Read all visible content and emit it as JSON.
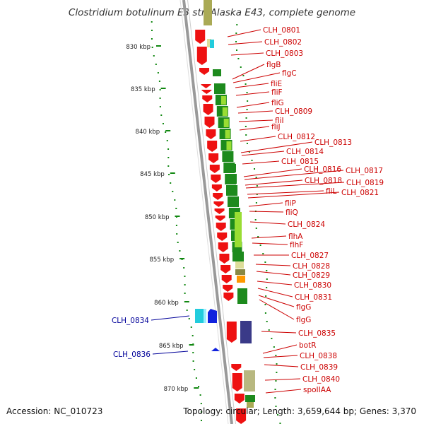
{
  "title": "Clostridium botulinum E3 str. Alaska E43, complete genome",
  "footer": {
    "accession": "Accession: NC_010723",
    "summary": "Topology: circular; Length: 3,659,644 bp; Genes: 3,370"
  },
  "colors": {
    "forward_gene": "#ee1111",
    "reverse_gene": "#1122dd",
    "forward_label": "#cc0000",
    "reverse_label": "#000099",
    "backbone": "#999999",
    "tick": "#118811",
    "cog_dark_green": "#1d8a1d",
    "cog_light_green": "#99dd33",
    "cog_cyan": "#22ccdd",
    "cog_navy": "#3a3a88",
    "cog_olive": "#b8b880",
    "cog_orange": "#ff9900",
    "cog_tan": "#dddd99"
  },
  "scale": {
    "unit": "kbp",
    "ticks": [
      "830 kbp",
      "835 kbp",
      "840 kbp",
      "845 kbp",
      "850 kbp",
      "855 kbp",
      "860 kbp",
      "865 kbp",
      "870 kbp"
    ]
  },
  "forward_genes": [
    "CLH_0801",
    "CLH_0802",
    "CLH_0803",
    "flgB",
    "flgC",
    "fliE",
    "fliF",
    "fliG",
    "CLH_0809",
    "fliI",
    "fliJ",
    "CLH_0812",
    "CLH_0813",
    "CLH_0814",
    "CLH_0815",
    "CLH_0816",
    "CLH_0817",
    "CLH_0818",
    "CLH_0819",
    "fliL",
    "CLH_0821",
    "fliP",
    "fliQ",
    "CLH_0824",
    "flhA",
    "flhF",
    "CLH_0827",
    "CLH_0828",
    "CLH_0829",
    "CLH_0830",
    "CLH_0831",
    "flgG",
    "flgG",
    "CLH_0835",
    "botR",
    "CLH_0838",
    "CLH_0839",
    "CLH_0840",
    "spoIIAA"
  ],
  "reverse_genes": [
    "CLH_0834",
    "CLH_0836"
  ]
}
